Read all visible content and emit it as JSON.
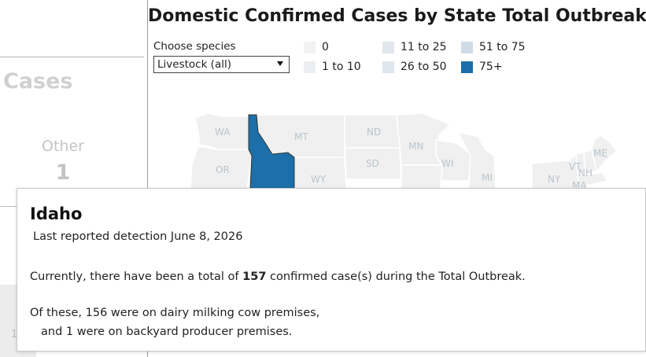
{
  "left_panel": {
    "heading": "Cases",
    "other_label": "Other",
    "other_value": "1",
    "partial_text": "1"
  },
  "title": "Domestic Confirmed Cases by State Total Outbreak",
  "species_filter": {
    "label": "Choose species",
    "selected": "Livestock (all)"
  },
  "legend": [
    {
      "label": "0",
      "color": "#f2f2f2"
    },
    {
      "label": "1 to 10",
      "color": "#eceff1"
    },
    {
      "label": "11 to 25",
      "color": "#e1e7ec"
    },
    {
      "label": "26 to 50",
      "color": "#dfe6ec"
    },
    {
      "label": "51 to 75",
      "color": "#cfdce7"
    },
    {
      "label": "75+",
      "color": "#1c6fa8"
    }
  ],
  "map": {
    "highlight_color": "#1c6fa8",
    "states": [
      "WA",
      "MT",
      "ND",
      "MN",
      "OR",
      "WY",
      "SD",
      "WI",
      "MI",
      "NY",
      "VT",
      "NH",
      "MA",
      "ME"
    ]
  },
  "tooltip": {
    "state": "Idaho",
    "last_reported": "Last reported detection June 8, 2026",
    "currently_prefix": "Currently, there have been a total of ",
    "total_cases": "157",
    "currently_suffix": " confirmed case(s) during the Total Outbreak.",
    "of_these_line": "Of these, 156 were on dairy milking cow premises,",
    "backyard_line": "and 1 were on backyard producer premises."
  }
}
